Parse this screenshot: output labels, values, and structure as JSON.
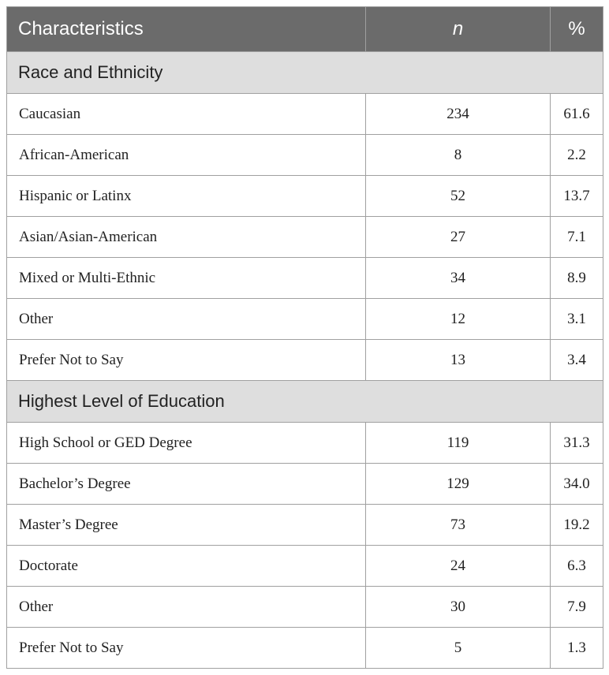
{
  "table": {
    "headers": {
      "characteristics": "Characteristics",
      "n": "n",
      "percent": "%"
    },
    "sections": [
      {
        "title": "Race and Ethnicity",
        "rows": [
          {
            "label": "Caucasian",
            "n": "234",
            "pct": "61.6"
          },
          {
            "label": "African-American",
            "n": "8",
            "pct": "2.2"
          },
          {
            "label": "Hispanic or Latinx",
            "n": "52",
            "pct": "13.7"
          },
          {
            "label": "Asian/Asian-American",
            "n": "27",
            "pct": "7.1"
          },
          {
            "label": "Mixed or Multi-Ethnic",
            "n": "34",
            "pct": "8.9"
          },
          {
            "label": "Other",
            "n": "12",
            "pct": "3.1"
          },
          {
            "label": "Prefer Not to Say",
            "n": "13",
            "pct": "3.4"
          }
        ]
      },
      {
        "title": "Highest Level of Education",
        "rows": [
          {
            "label": "High School or GED Degree",
            "n": "119",
            "pct": "31.3"
          },
          {
            "label": "Bachelor’s Degree",
            "n": "129",
            "pct": "34.0"
          },
          {
            "label": "Master’s Degree",
            "n": "73",
            "pct": "19.2"
          },
          {
            "label": "Doctorate",
            "n": "24",
            "pct": "6.3"
          },
          {
            "label": "Other",
            "n": "30",
            "pct": "7.9"
          },
          {
            "label": "Prefer Not to Say",
            "n": "5",
            "pct": "1.3"
          }
        ]
      }
    ]
  }
}
